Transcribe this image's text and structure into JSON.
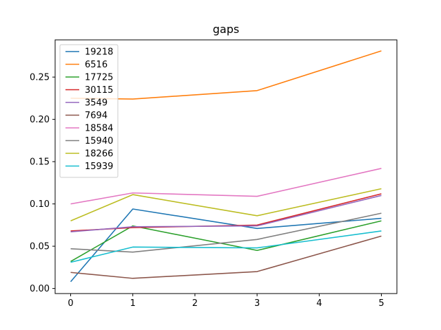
{
  "chart_data": {
    "type": "line",
    "title": "gaps",
    "xlabel": "",
    "ylabel": "",
    "x": [
      0,
      1,
      3,
      5
    ],
    "xlim": [
      -0.25,
      5.25
    ],
    "ylim": [
      -0.006,
      0.294
    ],
    "xticks": [
      0,
      1,
      2,
      3,
      4,
      5
    ],
    "xtick_labels": [
      "0",
      "1",
      "2",
      "3",
      "4",
      "5"
    ],
    "yticks": [
      0.0,
      0.05,
      0.1,
      0.15,
      0.2,
      0.25
    ],
    "ytick_labels": [
      "0.00",
      "0.05",
      "0.10",
      "0.15",
      "0.20",
      "0.25"
    ],
    "grid": false,
    "legend_position": "top-left",
    "series": [
      {
        "name": "19218",
        "color": "#1f77b4",
        "values": [
          0.008,
          0.094,
          0.071,
          0.083
        ]
      },
      {
        "name": "6516",
        "color": "#ff7f0e",
        "values": [
          0.225,
          0.224,
          0.234,
          0.281
        ]
      },
      {
        "name": "17725",
        "color": "#2ca02c",
        "values": [
          0.032,
          0.074,
          0.045,
          0.08
        ]
      },
      {
        "name": "30115",
        "color": "#d62728",
        "values": [
          0.068,
          0.072,
          0.075,
          0.112
        ]
      },
      {
        "name": "3549",
        "color": "#9467bd",
        "values": [
          0.067,
          0.073,
          0.074,
          0.11
        ]
      },
      {
        "name": "7694",
        "color": "#8c564b",
        "values": [
          0.019,
          0.012,
          0.02,
          0.062
        ]
      },
      {
        "name": "18584",
        "color": "#e377c2",
        "values": [
          0.1,
          0.113,
          0.109,
          0.142
        ]
      },
      {
        "name": "15940",
        "color": "#7f7f7f",
        "values": [
          0.047,
          0.043,
          0.058,
          0.089
        ]
      },
      {
        "name": "18266",
        "color": "#bcbd22",
        "values": [
          0.08,
          0.111,
          0.086,
          0.118
        ]
      },
      {
        "name": "15939",
        "color": "#17becf",
        "values": [
          0.031,
          0.049,
          0.048,
          0.068
        ]
      }
    ]
  }
}
